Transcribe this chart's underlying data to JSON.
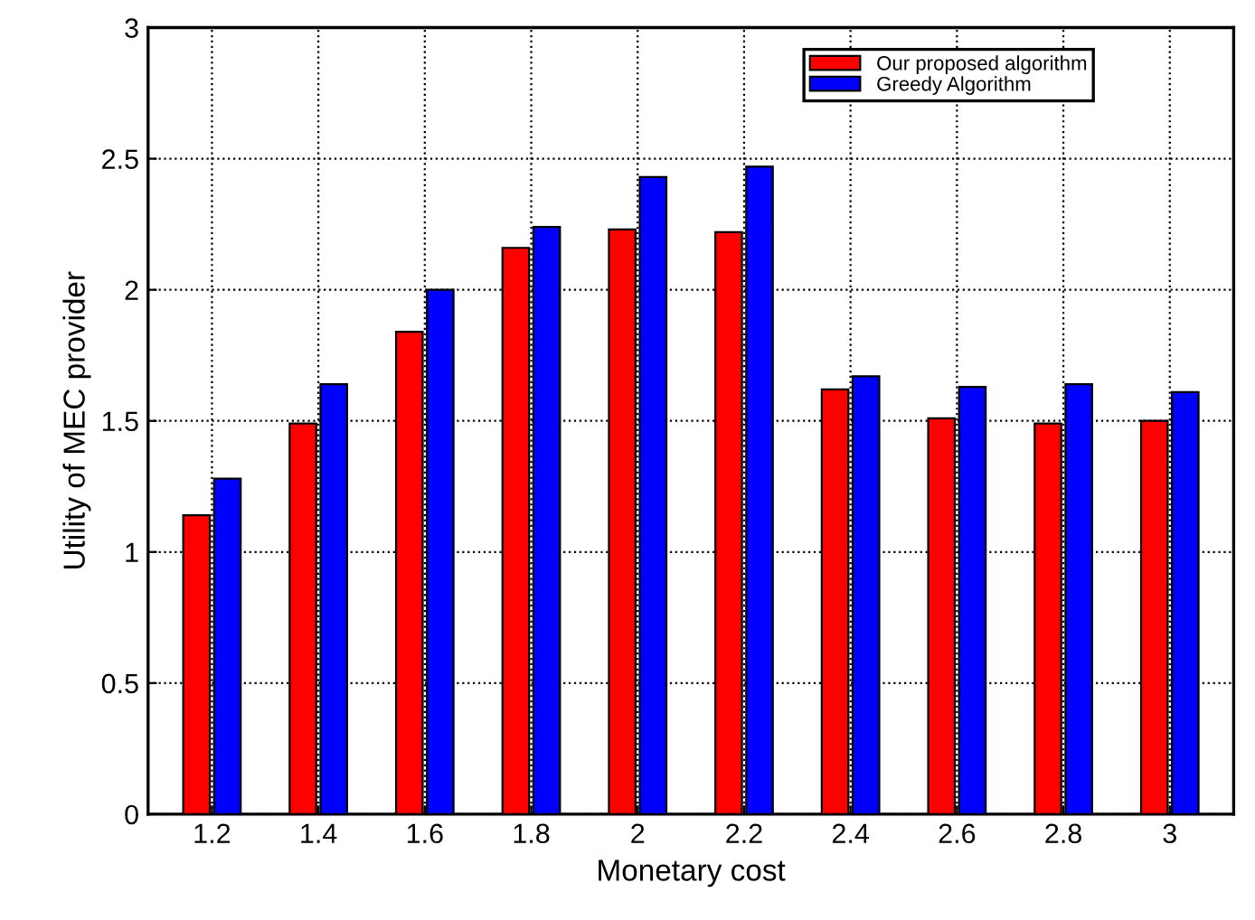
{
  "chart_data": {
    "type": "bar",
    "xlabel": "Monetary cost",
    "ylabel": "Utility of MEC provider",
    "categories": [
      "1.2",
      "1.4",
      "1.6",
      "1.8",
      "2",
      "2.2",
      "2.4",
      "2.6",
      "2.8",
      "3"
    ],
    "series": [
      {
        "name": "Our proposed algorithm",
        "color": "#ff0000",
        "values": [
          1.14,
          1.49,
          1.84,
          2.16,
          2.23,
          2.22,
          1.62,
          1.51,
          1.49,
          1.5
        ]
      },
      {
        "name": "Greedy Algorithm",
        "color": "#0000ff",
        "values": [
          1.28,
          1.64,
          2.0,
          2.24,
          2.43,
          2.47,
          1.67,
          1.63,
          1.64,
          1.61
        ]
      }
    ],
    "ylim": [
      0,
      3
    ],
    "yticks": [
      0,
      0.5,
      1,
      1.5,
      2,
      2.5,
      3
    ],
    "grid": true,
    "legend": "top right"
  }
}
